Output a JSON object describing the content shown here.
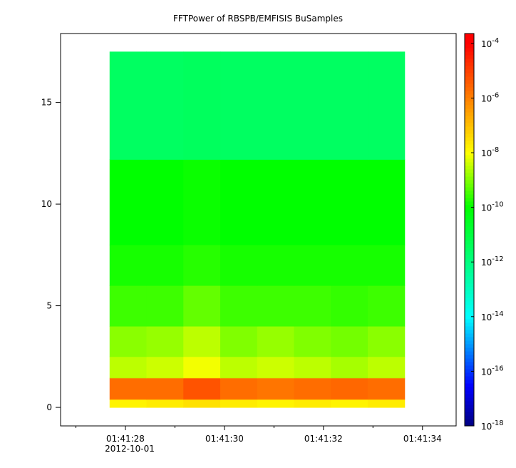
{
  "chart_data": {
    "type": "heatmap",
    "title": "FFTPower of RBSPB/EMFISIS  BuSamples",
    "x_date_label": "2012-10-01",
    "x": [
      "2012-10-01T01:41:27.680",
      "2012-10-01T01:41:28.425",
      "2012-10-01T01:41:29.170",
      "2012-10-01T01:41:29.915",
      "2012-10-01T01:41:30.660",
      "2012-10-01T01:41:31.405",
      "2012-10-01T01:41:32.150",
      "2012-10-01T01:41:32.895",
      "2012-10-01T01:41:33.640"
    ],
    "y": [
      0,
      0.4,
      1.45,
      2.5,
      4,
      6,
      8,
      12.2,
      17.5
    ],
    "values": [
      [
        1.5e-08,
        2e-08,
        3e-08,
        2e-08,
        1.5e-08,
        2e-08,
        1.5e-08,
        2e-08
      ],
      [
        2e-06,
        2e-06,
        5e-06,
        2e-06,
        1.5e-06,
        2e-06,
        2.5e-06,
        2e-06
      ],
      [
        3e-09,
        4e-09,
        8e-09,
        3e-09,
        4e-09,
        3e-09,
        2e-09,
        3e-09
      ],
      [
        1.2e-09,
        1.5e-09,
        3e-09,
        1e-09,
        1.5e-09,
        1e-09,
        8e-10,
        1.2e-09
      ],
      [
        3e-10,
        3e-10,
        6e-10,
        3e-10,
        3e-10,
        3e-10,
        2.5e-10,
        3e-10
      ],
      [
        1.5e-10,
        1.5e-10,
        2e-10,
        1.5e-10,
        1.5e-10,
        1.5e-10,
        1.5e-10,
        1.5e-10
      ],
      [
        1e-10,
        1e-10,
        1.2e-10,
        1e-10,
        1e-10,
        1e-10,
        1e-10,
        1e-10
      ],
      [
        3e-12,
        3e-12,
        3.5e-12,
        3e-12,
        3e-12,
        3e-12,
        3e-12,
        3e-12
      ]
    ],
    "xlim": [
      "2012-10-01T01:41:26.690",
      "2012-10-01T01:41:34.680"
    ],
    "xticks": [
      {
        "value": "2012-10-01T01:41:28",
        "label": "01:41:28"
      },
      {
        "value": "2012-10-01T01:41:30",
        "label": "01:41:30"
      },
      {
        "value": "2012-10-01T01:41:32",
        "label": "01:41:32"
      },
      {
        "value": "2012-10-01T01:41:34",
        "label": "01:41:34"
      }
    ],
    "xminorticks": [
      "2012-10-01T01:41:27",
      "2012-10-01T01:41:29",
      "2012-10-01T01:41:31",
      "2012-10-01T01:41:33"
    ],
    "ylim": [
      -0.91,
      18.39
    ],
    "yticks": [
      0,
      5,
      10,
      15
    ],
    "zlim": [
      1e-18,
      0.00023
    ],
    "zscale": "log",
    "zticks": [
      {
        "value": 0.0001,
        "label": "10-4"
      },
      {
        "value": 1e-06,
        "label": "10-6"
      },
      {
        "value": 1e-08,
        "label": "10-8"
      },
      {
        "value": 1e-10,
        "label": "10-10"
      },
      {
        "value": 1e-12,
        "label": "10-12"
      },
      {
        "value": 1e-14,
        "label": "10-14"
      },
      {
        "value": 1e-16,
        "label": "10-16"
      },
      {
        "value": 1e-18,
        "label": "10-18"
      }
    ],
    "colormap": [
      {
        "value": 1e-18,
        "color": "#000080"
      },
      {
        "value": 3e-17,
        "color": "#0000ff"
      },
      {
        "value": 1e-14,
        "color": "#00ffff"
      },
      {
        "value": 1e-12,
        "color": "#00ff80"
      },
      {
        "value": 1e-10,
        "color": "#00ff00"
      },
      {
        "value": 1e-08,
        "color": "#ffff00"
      },
      {
        "value": 1e-06,
        "color": "#ff8000"
      },
      {
        "value": 0.0001,
        "color": "#ff0000"
      }
    ]
  }
}
